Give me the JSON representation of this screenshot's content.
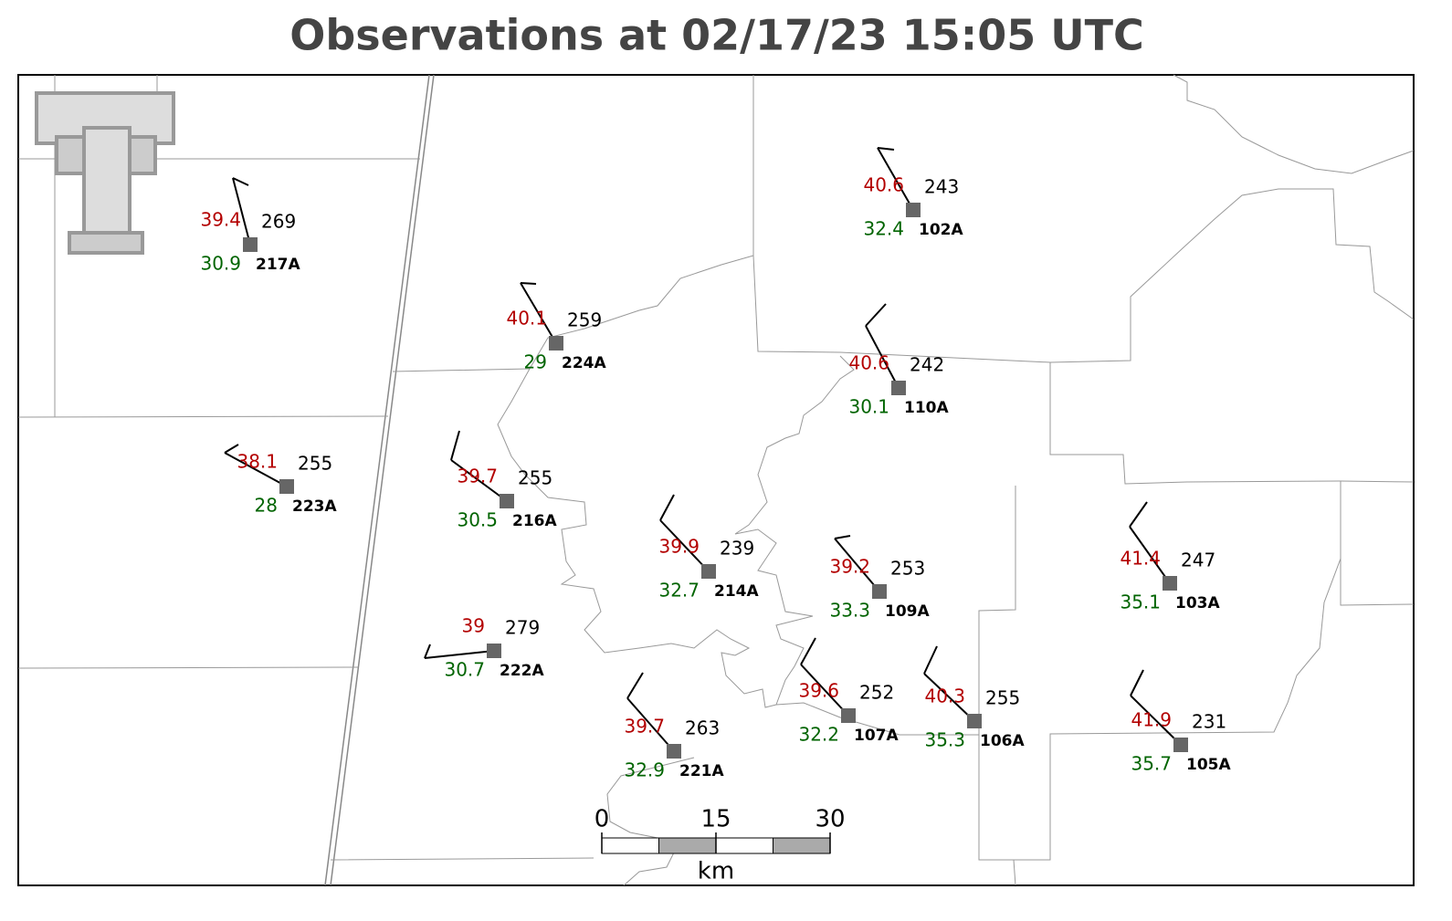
{
  "title": "Observations at 02/17/23 15:05 UTC",
  "stations": [
    {
      "id": "217A",
      "temperature": 39.4,
      "dewpoint": 30.9,
      "value": 269
    },
    {
      "id": "224A",
      "temperature": 40.1,
      "dewpoint": 29.0,
      "value": 259
    },
    {
      "id": "102A",
      "temperature": 40.6,
      "dewpoint": 32.4,
      "value": 243
    },
    {
      "id": "110A",
      "temperature": 40.6,
      "dewpoint": 30.1,
      "value": 242
    },
    {
      "id": "223A",
      "temperature": 38.1,
      "dewpoint": 28.0,
      "value": 255
    },
    {
      "id": "216A",
      "temperature": 39.7,
      "dewpoint": 30.5,
      "value": 255
    },
    {
      "id": "214A",
      "temperature": 39.9,
      "dewpoint": 32.7,
      "value": 239
    },
    {
      "id": "109A",
      "temperature": 39.2,
      "dewpoint": 33.3,
      "value": 253
    },
    {
      "id": "103A",
      "temperature": 41.4,
      "dewpoint": 35.1,
      "value": 247
    },
    {
      "id": "222A",
      "temperature": 39.0,
      "dewpoint": 30.7,
      "value": 279
    },
    {
      "id": "107A",
      "temperature": 39.6,
      "dewpoint": 32.2,
      "value": 252
    },
    {
      "id": "106A",
      "temperature": 40.3,
      "dewpoint": 35.3,
      "value": 255
    },
    {
      "id": "221A",
      "temperature": 39.7,
      "dewpoint": 32.9,
      "value": 263
    },
    {
      "id": "105A",
      "temperature": 41.9,
      "dewpoint": 35.7,
      "value": 231
    }
  ],
  "scale_bar": {
    "ticks": [
      0,
      15,
      30
    ],
    "unit": "km"
  }
}
